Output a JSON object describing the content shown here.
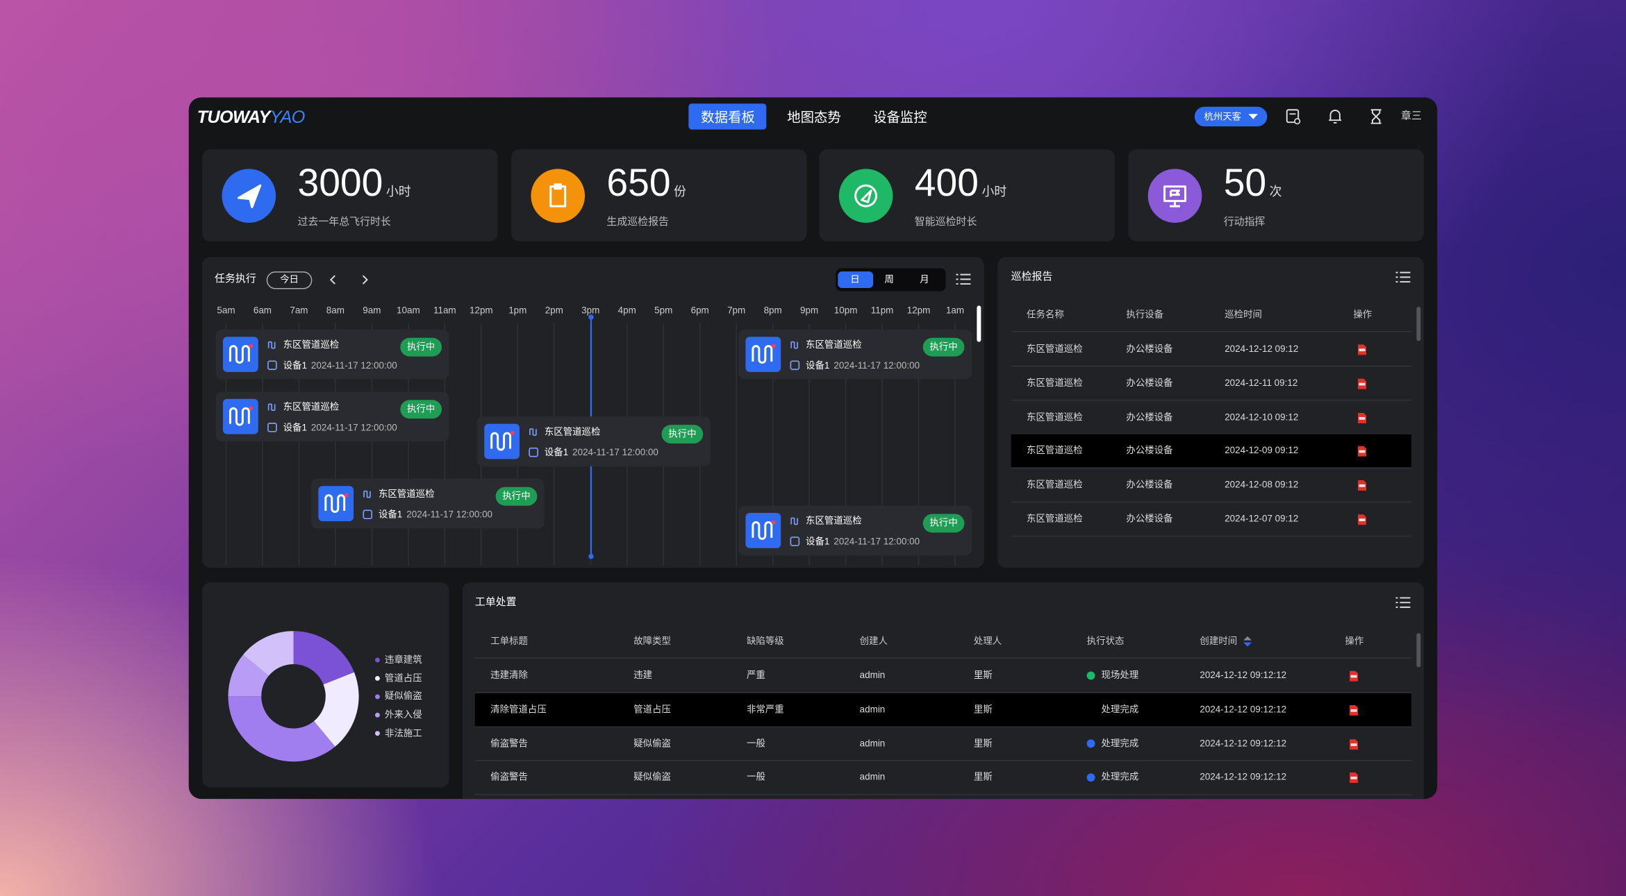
{
  "header": {
    "logo": "TUOWAY",
    "logo_accent": "YAO",
    "nav": [
      "数据看板",
      "地图态势",
      "设备监控"
    ],
    "city": "杭州天客",
    "user": "章三"
  },
  "stats": [
    {
      "value": 3000,
      "unit": "小时",
      "label": "过去一年总飞行时长",
      "color": "#2f6bf0"
    },
    {
      "value": 650,
      "unit": "份",
      "label": "生成巡检报告",
      "color": "#f5920b"
    },
    {
      "value": 400,
      "unit": "小时",
      "label": "智能巡检时长",
      "color": "#1fb866"
    },
    {
      "value": 50,
      "unit": "次",
      "label": "行动指挥",
      "color": "#8a5ad8"
    }
  ],
  "tasks": {
    "title": "任务执行",
    "today": "今日",
    "views": [
      "日",
      "周",
      "月"
    ],
    "hours": [
      "5am",
      "6am",
      "7am",
      "8am",
      "9am",
      "10am",
      "11am",
      "12pm",
      "1pm",
      "2pm",
      "3pm",
      "4pm",
      "5pm",
      "6pm",
      "7pm",
      "8pm",
      "9pm",
      "10pm",
      "11pm",
      "12pm",
      "1am"
    ],
    "cards": [
      {
        "name": "东区管道巡检",
        "status": "执行中",
        "device": "设备1",
        "time": "2024-11-17 12:00:00"
      },
      {
        "name": "东区管道巡检",
        "status": "执行中",
        "device": "设备1",
        "time": "2024-11-17 12:00:00"
      },
      {
        "name": "东区管道巡检",
        "status": "执行中",
        "device": "设备1",
        "time": "2024-11-17 12:00:00"
      },
      {
        "name": "东区管道巡检",
        "status": "执行中",
        "device": "设备1",
        "time": "2024-11-17 12:00:00"
      },
      {
        "name": "东区管道巡检",
        "status": "执行中",
        "device": "设备1",
        "time": "2024-11-17 12:00:00"
      },
      {
        "name": "东区管道巡检",
        "status": "执行中",
        "device": "设备1",
        "time": "2024-11-17 12:00:00"
      }
    ]
  },
  "report": {
    "title": "巡检报告",
    "columns": [
      "任务名称",
      "执行设备",
      "巡检时间",
      "操作"
    ],
    "rows": [
      [
        "东区管道巡检",
        "办公楼设备",
        "2024-12-12 09:12"
      ],
      [
        "东区管道巡检",
        "办公楼设备",
        "2024-12-11 09:12"
      ],
      [
        "东区管道巡检",
        "办公楼设备",
        "2024-12-10 09:12"
      ],
      [
        "东区管道巡检",
        "办公楼设备",
        "2024-12-09 09:12"
      ],
      [
        "东区管道巡检",
        "办公楼设备",
        "2024-12-08 09:12"
      ],
      [
        "东区管道巡检",
        "办公楼设备",
        "2024-12-07 09:12"
      ]
    ]
  },
  "pie": {
    "segments": [
      {
        "name": "违章建筑",
        "value": 19,
        "color": "#7b52d6"
      },
      {
        "name": "管道占压",
        "value": 20,
        "color": "#f1ebff"
      },
      {
        "name": "疑似偷盗",
        "value": 36,
        "color": "#a07ef0"
      },
      {
        "name": "外来入侵",
        "value": 11,
        "color": "#b99cf5"
      },
      {
        "name": "非法施工",
        "value": 14,
        "color": "#d2c0fa"
      }
    ]
  },
  "orders": {
    "title": "工单处置",
    "columns": [
      "工单标题",
      "故障类型",
      "缺陷等级",
      "创建人",
      "处理人",
      "执行状态",
      "创建时间",
      "操作"
    ],
    "rows": [
      {
        "cells": [
          "违建清除",
          "违建",
          "严重",
          "admin",
          "里斯"
        ],
        "status": "现场处理",
        "status_color": "#1fb866",
        "time": "2024-12-12 09:12:12"
      },
      {
        "cells": [
          "清除管道占压",
          "管道占压",
          "非常严重",
          "admin",
          "里斯"
        ],
        "status": "处理完成",
        "status_color": "#2f6bf0",
        "time": "2024-12-12 09:12:12"
      },
      {
        "cells": [
          "偷盗警告",
          "疑似偷盗",
          "一般",
          "admin",
          "里斯"
        ],
        "status": "处理完成",
        "status_color": "#2f6bf0",
        "time": "2024-12-12 09:12:12"
      },
      {
        "cells": [
          "偷盗警告",
          "疑似偷盗",
          "一般",
          "admin",
          "里斯"
        ],
        "status": "处理完成",
        "status_color": "#2f6bf0",
        "time": "2024-12-12 09:12:12"
      }
    ]
  }
}
